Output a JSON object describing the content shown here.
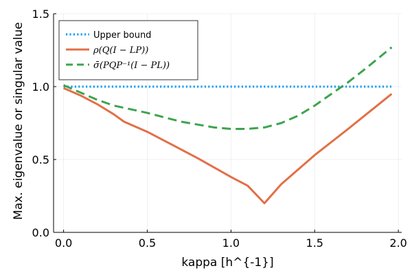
{
  "chart_data": {
    "type": "line",
    "title": "",
    "xlabel": "kappa [h^{-1}]",
    "ylabel": "Max. eigenvalue or singular value",
    "xlim": [
      -0.06,
      2.02
    ],
    "ylim": [
      0,
      1.5
    ],
    "xticks": [
      0,
      0.5,
      1,
      1.5,
      2
    ],
    "xtick_labels": [
      "0.0",
      "0.5",
      "1.0",
      "1.5",
      "2.0"
    ],
    "yticks": [
      0,
      0.5,
      1,
      1.5
    ],
    "ytick_labels": [
      "0.0",
      "0.5",
      "1.0",
      "1.5"
    ],
    "grid": true,
    "legend_position": "top-left",
    "series": [
      {
        "name": "Upper bound",
        "color": "#009af9",
        "style": "dotted",
        "x": [
          0,
          1.96
        ],
        "y": [
          1.0,
          1.0
        ]
      },
      {
        "name": "ρ(Q(I − LP))",
        "color": "#e26f46",
        "style": "solid",
        "x": [
          0,
          0.1,
          0.2,
          0.3,
          0.36,
          0.5,
          0.6,
          0.8,
          1.0,
          1.1,
          1.2,
          1.3,
          1.5,
          1.7,
          1.96
        ],
        "y": [
          0.99,
          0.94,
          0.88,
          0.81,
          0.76,
          0.69,
          0.63,
          0.51,
          0.38,
          0.32,
          0.2,
          0.33,
          0.53,
          0.71,
          0.95
        ]
      },
      {
        "name": "σ̄(PQP⁻¹(I − PL))",
        "color": "#3da44d",
        "style": "dashed",
        "x": [
          0,
          0.1,
          0.2,
          0.3,
          0.5,
          0.7,
          0.9,
          1.0,
          1.1,
          1.2,
          1.3,
          1.4,
          1.5,
          1.6,
          1.7,
          1.8,
          1.96
        ],
        "y": [
          1.01,
          0.96,
          0.91,
          0.87,
          0.82,
          0.76,
          0.72,
          0.71,
          0.71,
          0.72,
          0.75,
          0.8,
          0.87,
          0.95,
          1.03,
          1.12,
          1.27
        ]
      }
    ]
  }
}
